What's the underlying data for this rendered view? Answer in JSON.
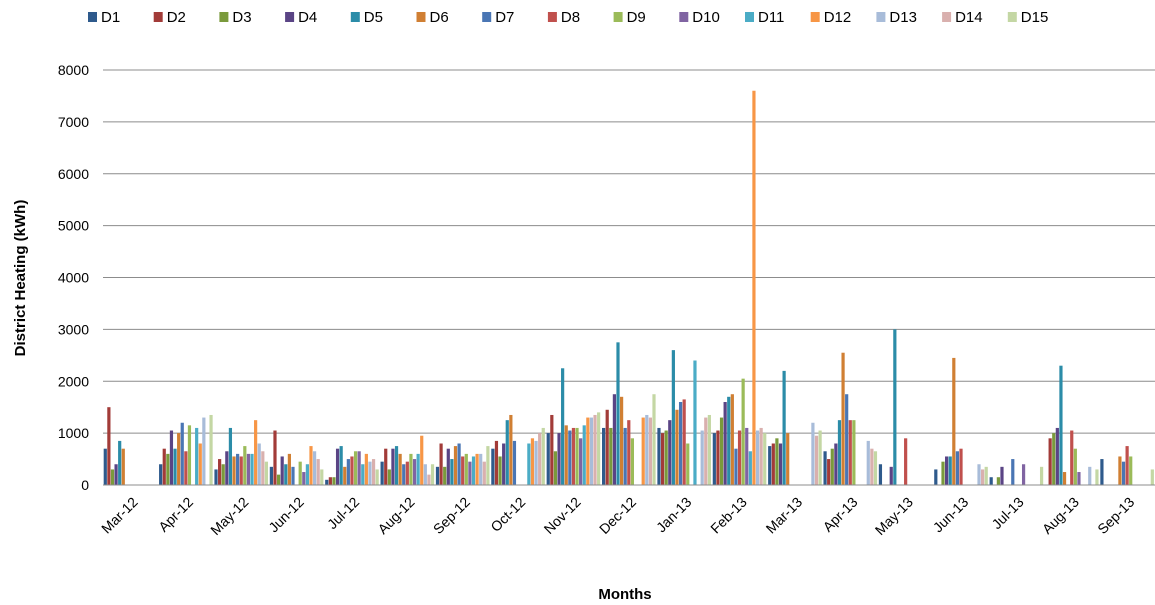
{
  "chart_data": {
    "type": "bar",
    "title": "",
    "xlabel": "Months",
    "ylabel": "District Heating (kWh)",
    "ylim": [
      0,
      8000
    ],
    "yticks": [
      0,
      1000,
      2000,
      3000,
      4000,
      5000,
      6000,
      7000,
      8000
    ],
    "grid": true,
    "legend_position": "top",
    "categories": [
      "Mar-12",
      "Apr-12",
      "May-12",
      "Jun-12",
      "Jul-12",
      "Aug-12",
      "Sep-12",
      "Oct-12",
      "Nov-12",
      "Dec-12",
      "Jan-13",
      "Feb-13",
      "Mar-13",
      "Apr-13",
      "May-13",
      "Jun-13",
      "Jul-13",
      "Aug-13",
      "Sep-13"
    ],
    "series": [
      {
        "name": "D1",
        "color": "#2E5A8C",
        "values": [
          700,
          400,
          300,
          350,
          100,
          450,
          350,
          700,
          1000,
          1100,
          1100,
          1000,
          750,
          650,
          400,
          300,
          150,
          0,
          500
        ]
      },
      {
        "name": "D2",
        "color": "#A23B38",
        "values": [
          1500,
          700,
          500,
          1050,
          150,
          700,
          800,
          850,
          1350,
          1450,
          1000,
          1050,
          800,
          500,
          0,
          0,
          0,
          900,
          0
        ]
      },
      {
        "name": "D3",
        "color": "#7A9A3C",
        "values": [
          300,
          600,
          400,
          200,
          150,
          300,
          350,
          550,
          650,
          1100,
          1050,
          1300,
          900,
          700,
          0,
          450,
          150,
          1000,
          0
        ]
      },
      {
        "name": "D4",
        "color": "#5A4485",
        "values": [
          400,
          1050,
          650,
          550,
          700,
          700,
          700,
          800,
          1000,
          1750,
          1250,
          1600,
          800,
          800,
          350,
          550,
          350,
          1100,
          0
        ]
      },
      {
        "name": "D5",
        "color": "#2B8CA8",
        "values": [
          850,
          700,
          1100,
          400,
          750,
          750,
          500,
          1250,
          2250,
          2750,
          2600,
          1700,
          2200,
          1250,
          3000,
          550,
          0,
          2300,
          0
        ]
      },
      {
        "name": "D6",
        "color": "#D07F33",
        "values": [
          700,
          1000,
          550,
          600,
          350,
          600,
          750,
          1350,
          1150,
          1700,
          1450,
          1750,
          1000,
          2550,
          0,
          2450,
          0,
          250,
          550
        ]
      },
      {
        "name": "D7",
        "color": "#4A76B4",
        "values": [
          0,
          1200,
          600,
          350,
          500,
          400,
          800,
          850,
          1050,
          1100,
          1600,
          700,
          0,
          1750,
          0,
          650,
          500,
          0,
          450
        ]
      },
      {
        "name": "D8",
        "color": "#C0504D",
        "values": [
          0,
          650,
          550,
          0,
          550,
          450,
          550,
          0,
          1100,
          1250,
          1650,
          1050,
          0,
          1250,
          900,
          700,
          0,
          1050,
          750
        ]
      },
      {
        "name": "D9",
        "color": "#9BBB59",
        "values": [
          0,
          1150,
          750,
          450,
          650,
          600,
          600,
          0,
          1100,
          900,
          800,
          2050,
          0,
          1250,
          0,
          0,
          0,
          700,
          550
        ]
      },
      {
        "name": "D10",
        "color": "#8064A2",
        "values": [
          0,
          0,
          600,
          250,
          650,
          500,
          450,
          0,
          900,
          0,
          0,
          1100,
          0,
          0,
          0,
          0,
          400,
          250,
          0
        ]
      },
      {
        "name": "D11",
        "color": "#4BACC6",
        "values": [
          0,
          1100,
          600,
          400,
          400,
          600,
          550,
          800,
          1150,
          0,
          2400,
          650,
          0,
          0,
          0,
          0,
          0,
          0,
          0
        ]
      },
      {
        "name": "D12",
        "color": "#F79646",
        "values": [
          0,
          800,
          1250,
          750,
          600,
          950,
          600,
          900,
          1300,
          1300,
          0,
          7600,
          0,
          0,
          0,
          0,
          0,
          0,
          0
        ]
      },
      {
        "name": "D13",
        "color": "#A8BCD9",
        "values": [
          0,
          1300,
          800,
          650,
          450,
          400,
          600,
          850,
          1300,
          1350,
          1050,
          1050,
          1200,
          850,
          0,
          400,
          0,
          350,
          0
        ]
      },
      {
        "name": "D14",
        "color": "#D9B0AE",
        "values": [
          0,
          0,
          650,
          500,
          500,
          200,
          450,
          1000,
          1350,
          1300,
          1300,
          1100,
          950,
          700,
          0,
          300,
          0,
          0,
          0
        ]
      },
      {
        "name": "D15",
        "color": "#C4D7A4",
        "values": [
          0,
          1350,
          450,
          300,
          300,
          400,
          750,
          1100,
          1400,
          1750,
          1350,
          1000,
          1050,
          650,
          0,
          350,
          350,
          300,
          300
        ]
      }
    ]
  }
}
